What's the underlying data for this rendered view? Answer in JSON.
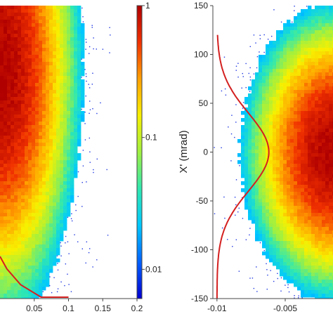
{
  "chart_data": [
    {
      "type": "heatmap",
      "title": "",
      "xlabel": "",
      "ylabel": "",
      "x_ticks": [
        "0.05",
        "0.1",
        "0.15",
        "0.2"
      ],
      "x_tick_values": [
        0.05,
        0.1,
        0.15,
        0.2
      ],
      "xlim": [
        0.0,
        0.2
      ],
      "colorbar": {
        "scale": "log",
        "range": [
          0.006,
          1
        ],
        "ticks": [
          "1",
          "0.1",
          "0.01"
        ],
        "tick_values": [
          1,
          0.1,
          0.01
        ],
        "colormap": [
          "#0000d0",
          "#0060ff",
          "#00c8ff",
          "#30e8b0",
          "#a0f040",
          "#f8f000",
          "#ffa000",
          "#f03000",
          "#b00000"
        ]
      },
      "density": {
        "center_x": 0.0,
        "spread_x": 0.05,
        "peak_y_fraction_from_top": 0.22,
        "spread_y_fraction": 0.3
      },
      "profile_curve": {
        "color": "#d42020",
        "points": [
          [
            0.0,
            -0.87
          ],
          [
            0.01,
            -0.91
          ],
          [
            0.03,
            -0.96
          ],
          [
            0.06,
            -1.0
          ],
          [
            0.1,
            -1.0
          ]
        ]
      }
    },
    {
      "type": "scatter",
      "title": "",
      "xlabel": "",
      "ylabel": "X' (mrad)",
      "x_ticks": [
        "-0.01",
        "-0.005"
      ],
      "x_tick_values": [
        -0.01,
        -0.005
      ],
      "xlim": [
        -0.0103,
        -0.0015
      ],
      "y_ticks": [
        "150",
        "100",
        "50",
        "0",
        "-50",
        "-100",
        "-150"
      ],
      "y_tick_values": [
        150,
        100,
        50,
        0,
        -50,
        -100,
        -150
      ],
      "ylim": [
        -150,
        150
      ],
      "density": {
        "center_x": -0.0013,
        "center_y": 0,
        "spread_x": 0.0025,
        "spread_y": 55
      },
      "profile_curve": {
        "color": "#d42020",
        "shape": "gaussian",
        "base_x": -0.01,
        "peak_x": -0.0062,
        "center_y": 0,
        "sigma_y": 40,
        "ylim": [
          -150,
          120
        ]
      }
    }
  ]
}
